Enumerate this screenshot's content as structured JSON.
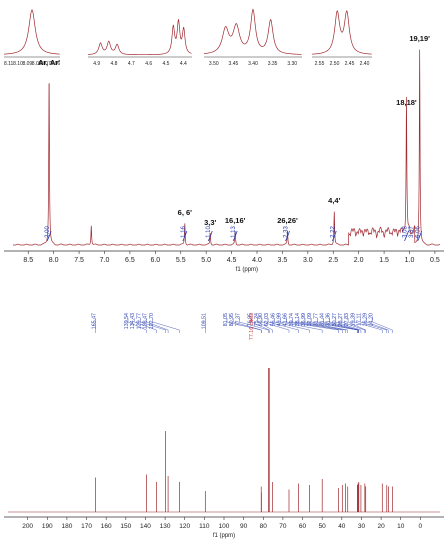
{
  "chart_data": [
    {
      "type": "line",
      "name": "1H NMR spectrum",
      "xlabel": "f1 (ppm)",
      "xlim": [
        8.8,
        0.4
      ],
      "x_ticks": [
        "8.5",
        "8.0",
        "7.5",
        "7.0",
        "6.5",
        "6.0",
        "5.5",
        "5.0",
        "4.5",
        "4.0",
        "3.5",
        "3.0",
        "2.5",
        "2.0",
        "1.5",
        "1.0",
        "0.5"
      ],
      "peaks": [
        {
          "ppm": 8.09,
          "height": 0.86,
          "label": "Ar, Ar'",
          "integral": "2.00"
        },
        {
          "ppm": 7.26,
          "height": 0.1
        },
        {
          "ppm": 5.42,
          "height": 0.11,
          "label": "6, 6'",
          "integral": "1.16"
        },
        {
          "ppm": 4.92,
          "height": 0.06,
          "label": "3,3'",
          "integral": "1.10"
        },
        {
          "ppm": 4.43,
          "height": 0.07,
          "label": "16,16'",
          "integral": "1.13"
        },
        {
          "ppm": 3.4,
          "height": 0.07,
          "label": "26,26'",
          "integral": "2.33"
        },
        {
          "ppm": 2.48,
          "height": 0.17,
          "label": "4,4'",
          "integral": "2.22"
        },
        {
          "ppm": 1.06,
          "height": 0.66,
          "label": "18,18'",
          "integral": "3.08"
        },
        {
          "ppm": 0.8,
          "height": 0.98,
          "label": "19,19'",
          "integral": "6.06"
        }
      ],
      "minor_integral": "3.37",
      "insets": [
        {
          "x_ticks": [
            "8.11",
            "8.10",
            "8.09",
            "8.08",
            "8.07",
            "8.06"
          ]
        },
        {
          "x_ticks": [
            "4.9",
            "4.8",
            "4.7",
            "4.6",
            "4.5",
            "4.4"
          ]
        },
        {
          "x_ticks": [
            "3.50",
            "3.45",
            "3.40",
            "3.35",
            "3.30"
          ]
        },
        {
          "x_ticks": [
            "2.55",
            "2.50",
            "2.45",
            "2.40"
          ]
        }
      ]
    },
    {
      "type": "line",
      "name": "13C NMR spectrum",
      "xlabel": "f1 (ppm)",
      "xlim": [
        210,
        -10
      ],
      "x_ticks": [
        "200",
        "190",
        "180",
        "170",
        "160",
        "150",
        "140",
        "130",
        "120",
        "110",
        "100",
        "90",
        "80",
        "70",
        "60",
        "50",
        "40",
        "30",
        "20",
        "10",
        "0"
      ],
      "solvent_label": "77.16 cdcl3",
      "peak_labels": [
        "165.47",
        "139.54",
        "134.43",
        "129.77",
        "128.47",
        "122.70",
        "109.51",
        "81.05",
        "80.95",
        "77.37",
        "76.95",
        "75.24",
        "66.90",
        "62.03",
        "56.46",
        "49.99",
        "41.66",
        "39.74",
        "38.14",
        "36.99",
        "32.09",
        "31.77",
        "31.44",
        "31.36",
        "30.27",
        "28.27",
        "27.83",
        "19.39",
        "17.11",
        "16.29",
        "14.20"
      ],
      "peaks": [
        {
          "ppm": 165.47,
          "height": 0.23
        },
        {
          "ppm": 139.54,
          "height": 0.25
        },
        {
          "ppm": 134.43,
          "height": 0.2
        },
        {
          "ppm": 129.77,
          "height": 0.54
        },
        {
          "ppm": 128.47,
          "height": 0.24
        },
        {
          "ppm": 122.7,
          "height": 0.2
        },
        {
          "ppm": 109.51,
          "height": 0.14
        },
        {
          "ppm": 81.05,
          "height": 0.17
        },
        {
          "ppm": 80.95,
          "height": 0.13
        },
        {
          "ppm": 77.37,
          "height": 0.96
        },
        {
          "ppm": 76.95,
          "height": 0.96
        },
        {
          "ppm": 75.24,
          "height": 0.2
        },
        {
          "ppm": 66.9,
          "height": 0.15
        },
        {
          "ppm": 62.03,
          "height": 0.19
        },
        {
          "ppm": 56.46,
          "height": 0.18
        },
        {
          "ppm": 49.99,
          "height": 0.22
        },
        {
          "ppm": 41.66,
          "height": 0.16
        },
        {
          "ppm": 39.74,
          "height": 0.18
        },
        {
          "ppm": 38.14,
          "height": 0.19
        },
        {
          "ppm": 36.99,
          "height": 0.17
        },
        {
          "ppm": 32.09,
          "height": 0.18
        },
        {
          "ppm": 31.77,
          "height": 0.19
        },
        {
          "ppm": 31.44,
          "height": 0.19
        },
        {
          "ppm": 31.36,
          "height": 0.2
        },
        {
          "ppm": 30.27,
          "height": 0.18
        },
        {
          "ppm": 28.27,
          "height": 0.19
        },
        {
          "ppm": 27.83,
          "height": 0.17
        },
        {
          "ppm": 19.39,
          "height": 0.19
        },
        {
          "ppm": 17.11,
          "height": 0.18
        },
        {
          "ppm": 16.29,
          "height": 0.17
        },
        {
          "ppm": 14.2,
          "height": 0.17
        }
      ]
    }
  ],
  "colors": {
    "spectrum": "#a0282f",
    "integral": "#2a3fb0",
    "peak_label": "#2a3fb0",
    "solvent_label": "#d03030",
    "axis": "#333333"
  }
}
